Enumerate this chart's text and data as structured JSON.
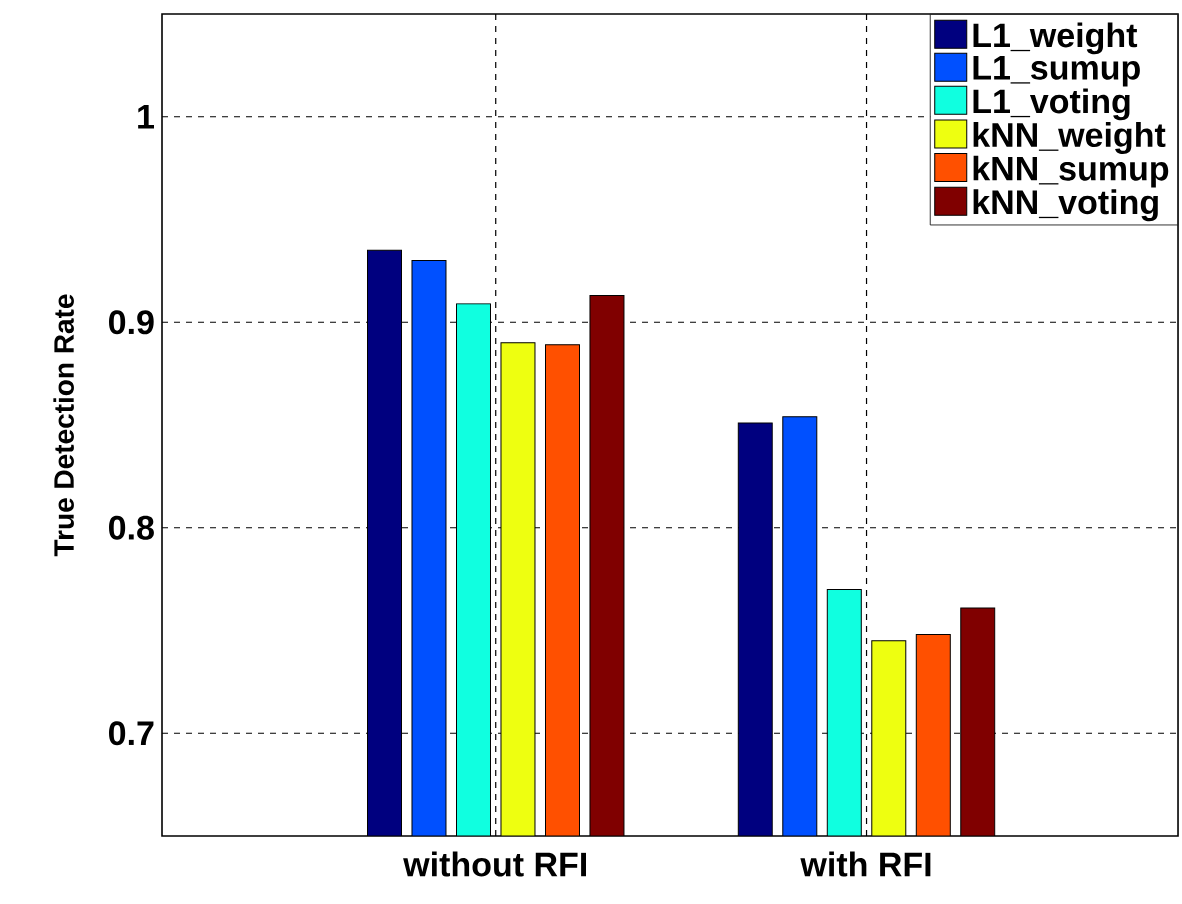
{
  "chart_data": {
    "type": "bar",
    "ylabel": "True Detection Rate",
    "categories": [
      "without RFI",
      "with RFI"
    ],
    "series": [
      {
        "name": "L1_weight",
        "color": "#00007f",
        "values": [
          0.935,
          0.851
        ]
      },
      {
        "name": "L1_sumup",
        "color": "#0050ff",
        "values": [
          0.93,
          0.854
        ]
      },
      {
        "name": "L1_voting",
        "color": "#10ffe0",
        "values": [
          0.909,
          0.77
        ]
      },
      {
        "name": "kNN_weight",
        "color": "#eeff10",
        "values": [
          0.89,
          0.745
        ]
      },
      {
        "name": "kNN_sumup",
        "color": "#ff5000",
        "values": [
          0.889,
          0.748
        ]
      },
      {
        "name": "kNN_voting",
        "color": "#800000",
        "values": [
          0.913,
          0.761
        ]
      }
    ],
    "ylim": [
      0.65,
      1.05
    ],
    "yticks": [
      0.7,
      0.8,
      0.9,
      1
    ],
    "grid": true,
    "legend": "top right"
  }
}
